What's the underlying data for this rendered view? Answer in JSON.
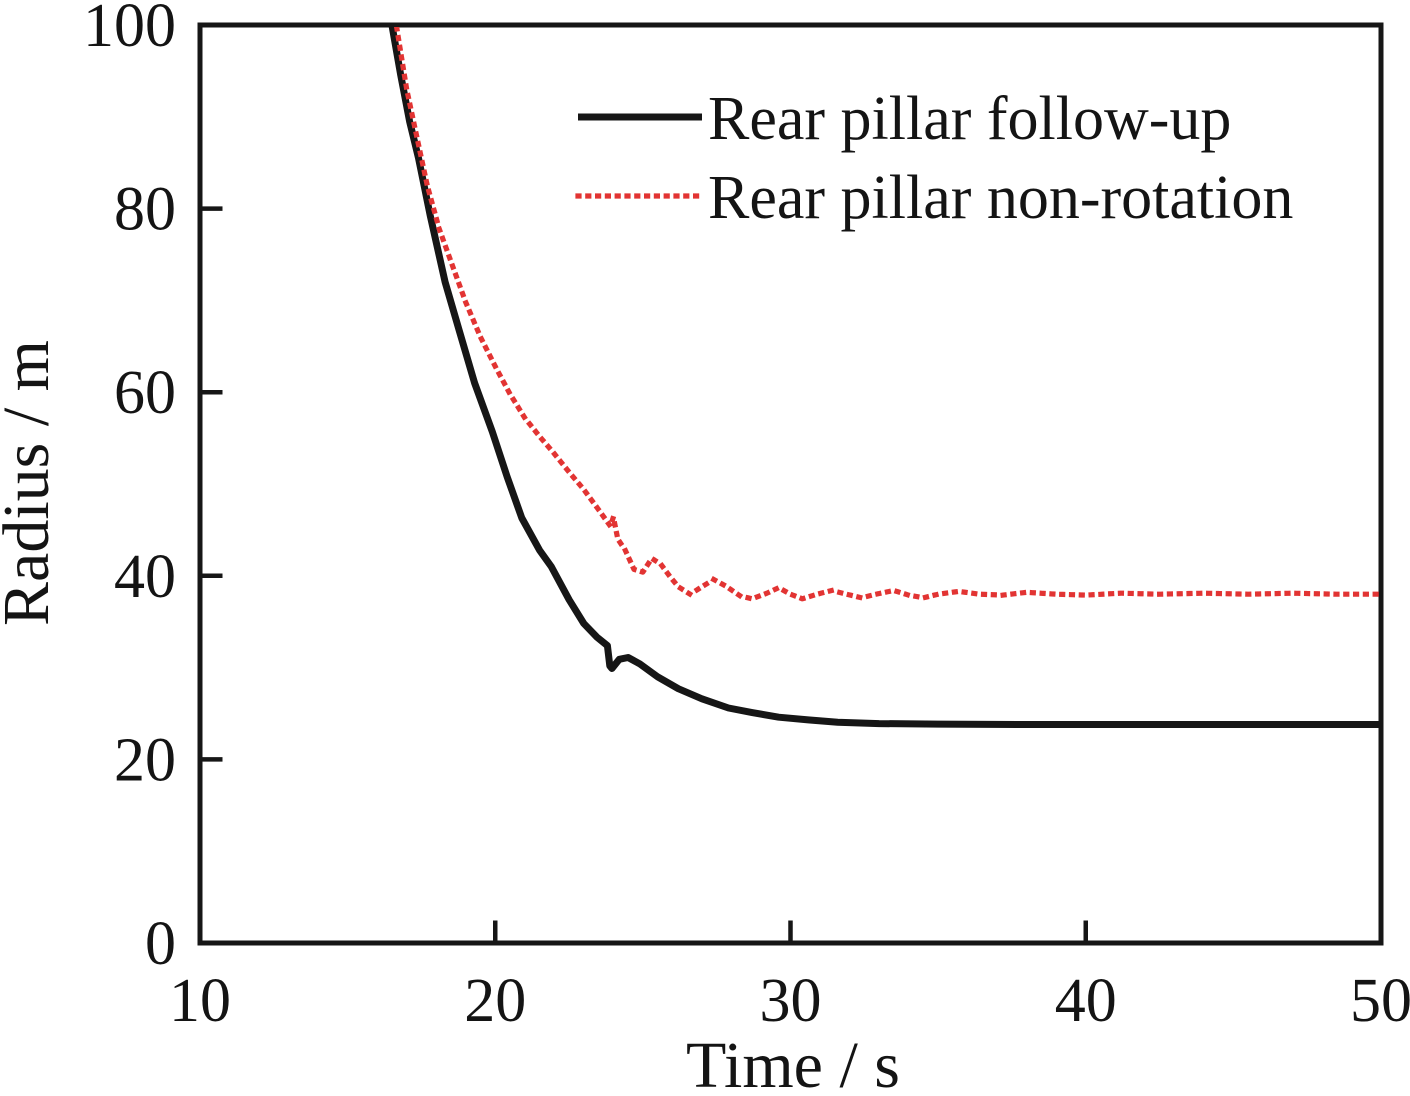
{
  "figure": {
    "background": "#ffffff",
    "axis_color": "#161616"
  },
  "chart_data": {
    "type": "line",
    "title": "",
    "xlabel": "Time / s",
    "ylabel": "Radius / m",
    "xlim": [
      10,
      50
    ],
    "ylim": [
      0,
      100
    ],
    "x_ticks": [
      10,
      20,
      30,
      40,
      50
    ],
    "y_ticks": [
      0,
      20,
      40,
      60,
      80,
      100
    ],
    "grid": false,
    "legend_position": "upper-right-inside",
    "series": [
      {
        "name": "Rear pillar follow-up",
        "color": "#161616",
        "style": "solid",
        "line_width": 7,
        "points": [
          [
            16.2,
            106
          ],
          [
            16.5,
            100
          ],
          [
            16.8,
            94.5
          ],
          [
            17.1,
            89.5
          ],
          [
            17.4,
            85.5
          ],
          [
            17.8,
            79.2
          ],
          [
            18.3,
            72.0
          ],
          [
            18.8,
            66.5
          ],
          [
            19.3,
            61.0
          ],
          [
            19.9,
            55.7
          ],
          [
            20.4,
            50.8
          ],
          [
            20.9,
            46.3
          ],
          [
            21.5,
            42.8
          ],
          [
            21.9,
            41.0
          ],
          [
            22.5,
            37.4
          ],
          [
            23.0,
            34.8
          ],
          [
            23.45,
            33.3
          ],
          [
            23.8,
            32.4
          ],
          [
            23.88,
            30.2
          ],
          [
            23.95,
            29.9
          ],
          [
            24.2,
            30.9
          ],
          [
            24.5,
            31.1
          ],
          [
            24.9,
            30.4
          ],
          [
            25.5,
            29.0
          ],
          [
            26.2,
            27.7
          ],
          [
            27.0,
            26.6
          ],
          [
            27.9,
            25.6
          ],
          [
            28.7,
            25.1
          ],
          [
            29.6,
            24.6
          ],
          [
            30.6,
            24.3
          ],
          [
            31.6,
            24.05
          ],
          [
            33.0,
            23.9
          ],
          [
            35.0,
            23.85
          ],
          [
            38.0,
            23.8
          ],
          [
            42.0,
            23.8
          ],
          [
            46.0,
            23.8
          ],
          [
            50.0,
            23.8
          ]
        ]
      },
      {
        "name": "Rear pillar non-rotation",
        "color": "#e23433",
        "style": "dotted",
        "line_width": 5.2,
        "points": [
          [
            16.35,
            106
          ],
          [
            16.65,
            100
          ],
          [
            17.0,
            93.0
          ],
          [
            17.3,
            88.5
          ],
          [
            17.7,
            82.5
          ],
          [
            18.1,
            77.8
          ],
          [
            18.55,
            73.8
          ],
          [
            19.0,
            69.8
          ],
          [
            19.5,
            66.0
          ],
          [
            20.0,
            62.8
          ],
          [
            20.5,
            59.8
          ],
          [
            21.0,
            57.2
          ],
          [
            21.5,
            55.2
          ],
          [
            22.0,
            53.3
          ],
          [
            22.5,
            51.3
          ],
          [
            23.0,
            49.4
          ],
          [
            23.5,
            47.2
          ],
          [
            23.9,
            45.4
          ],
          [
            24.0,
            46.4
          ],
          [
            24.15,
            44.0
          ],
          [
            24.4,
            42.8
          ],
          [
            24.7,
            40.7
          ],
          [
            25.0,
            40.4
          ],
          [
            25.3,
            41.9
          ],
          [
            25.6,
            41.3
          ],
          [
            25.9,
            40.0
          ],
          [
            26.2,
            38.8
          ],
          [
            26.6,
            38.0
          ],
          [
            27.0,
            38.8
          ],
          [
            27.4,
            39.6
          ],
          [
            27.8,
            38.9
          ],
          [
            28.3,
            37.8
          ],
          [
            28.7,
            37.5
          ],
          [
            29.2,
            38.1
          ],
          [
            29.6,
            38.7
          ],
          [
            30.0,
            38.0
          ],
          [
            30.4,
            37.5
          ],
          [
            30.9,
            38.0
          ],
          [
            31.4,
            38.4
          ],
          [
            31.9,
            38.0
          ],
          [
            32.4,
            37.6
          ],
          [
            32.9,
            38.0
          ],
          [
            33.5,
            38.4
          ],
          [
            34.0,
            37.9
          ],
          [
            34.5,
            37.6
          ],
          [
            35.0,
            38.0
          ],
          [
            35.7,
            38.3
          ],
          [
            36.4,
            38.0
          ],
          [
            37.2,
            37.9
          ],
          [
            38.0,
            38.2
          ],
          [
            39.0,
            38.0
          ],
          [
            40.0,
            37.9
          ],
          [
            41.2,
            38.1
          ],
          [
            42.5,
            38.0
          ],
          [
            44.0,
            38.1
          ],
          [
            45.5,
            38.0
          ],
          [
            47.0,
            38.1
          ],
          [
            48.5,
            38.0
          ],
          [
            50.0,
            38.0
          ]
        ]
      }
    ]
  }
}
